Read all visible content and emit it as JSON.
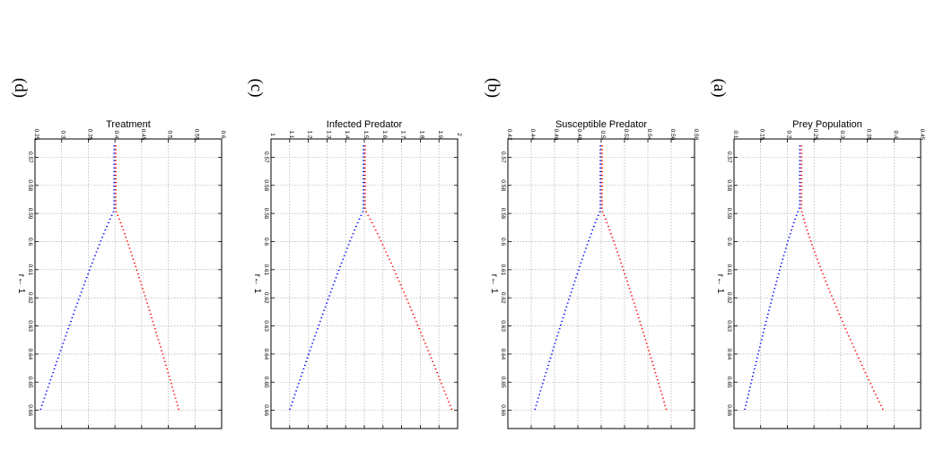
{
  "figure": {
    "colors": {
      "red": "#ff0000",
      "blue": "#0000ff",
      "grid": "#9a9a9a",
      "axis": "#000000"
    }
  },
  "chart_data": [
    {
      "type": "scatter",
      "panel_label": "(a)",
      "title": "Prey Population",
      "xlabel": "r↔1",
      "xlabel_text": "r← 1",
      "ylabel": "",
      "x_ticks": [
        "0.57",
        "0.58",
        "0.59",
        "0.6",
        "0.61",
        "0.62",
        "0.63",
        "0.64",
        "0.65",
        "0.66"
      ],
      "y_ticks": [
        "0.1",
        "0.15",
        "0.2",
        "0.25",
        "0.3",
        "0.35",
        "0.4",
        "0.45"
      ],
      "xlim": [
        0.5635,
        0.6665
      ],
      "ylim": [
        0.1,
        0.45
      ],
      "grid": true,
      "series": [
        {
          "name": "upper branch",
          "color": "red",
          "start_x": 0.566,
          "branch_x": 0.5872,
          "end_x": 0.66,
          "start_y": 0.225,
          "end_y": 0.38,
          "curve": 1.2
        },
        {
          "name": "lower branch",
          "color": "blue",
          "start_x": 0.566,
          "branch_x": 0.5872,
          "end_x": 0.66,
          "start_y": 0.225,
          "end_y": 0.12,
          "curve": 0.85
        }
      ]
    },
    {
      "type": "scatter",
      "panel_label": "(b)",
      "title": "Susceptible Predator",
      "xlabel": "r↔1",
      "xlabel_text": "r← 1",
      "ylabel": "",
      "x_ticks": [
        "0.57",
        "0.58",
        "0.59",
        "0.6",
        "0.61",
        "0.62",
        "0.63",
        "0.64",
        "0.65",
        "0.66"
      ],
      "y_ticks": [
        "0.42",
        "0.44",
        "0.46",
        "0.48",
        "0.5",
        "0.52",
        "0.54",
        "0.56",
        "0.58"
      ],
      "xlim": [
        0.5635,
        0.6665
      ],
      "ylim": [
        0.42,
        0.58
      ],
      "grid": true,
      "series": [
        {
          "name": "upper branch",
          "color": "red",
          "start_x": 0.566,
          "branch_x": 0.5885,
          "end_x": 0.66,
          "start_y": 0.5,
          "end_y": 0.556,
          "curve": 0.9
        },
        {
          "name": "lower branch",
          "color": "blue",
          "start_x": 0.566,
          "branch_x": 0.5885,
          "end_x": 0.66,
          "start_y": 0.5,
          "end_y": 0.443,
          "curve": 0.9
        }
      ]
    },
    {
      "type": "scatter",
      "panel_label": "(c)",
      "title": "Infected Predator",
      "xlabel": "r↔1",
      "xlabel_text": "r← 1",
      "ylabel": "",
      "x_ticks": [
        "0.57",
        "0.58",
        "0.59",
        "0.6",
        "0.61",
        "0.62",
        "0.63",
        "0.64",
        "0.65",
        "0.66"
      ],
      "y_ticks": [
        "1",
        "1.1",
        "1.2",
        "1.3",
        "1.4",
        "1.5",
        "1.6",
        "1.7",
        "1.8",
        "1.9",
        "2"
      ],
      "xlim": [
        0.5635,
        0.6665
      ],
      "ylim": [
        1.0,
        2.0
      ],
      "grid": true,
      "series": [
        {
          "name": "upper branch",
          "color": "red",
          "start_x": 0.566,
          "branch_x": 0.5885,
          "end_x": 0.66,
          "start_y": 1.5,
          "end_y": 1.97,
          "curve": 0.9
        },
        {
          "name": "lower branch",
          "color": "blue",
          "start_x": 0.566,
          "branch_x": 0.5885,
          "end_x": 0.66,
          "start_y": 1.5,
          "end_y": 1.1,
          "curve": 0.9
        }
      ]
    },
    {
      "type": "scatter",
      "panel_label": "(d)",
      "title": "Treatment",
      "xlabel": "r↔1",
      "xlabel_text": "r← 1",
      "ylabel": "",
      "x_ticks": [
        "0.57",
        "0.58",
        "0.59",
        "0.6",
        "0.61",
        "0.62",
        "0.63",
        "0.64",
        "0.65",
        "0.66"
      ],
      "y_ticks": [
        "0.25",
        "0.3",
        "0.35",
        "0.4",
        "0.45",
        "0.5",
        "0.55",
        "0.6"
      ],
      "xlim": [
        0.5635,
        0.6665
      ],
      "ylim": [
        0.25,
        0.6
      ],
      "grid": true,
      "series": [
        {
          "name": "upper branch",
          "color": "red",
          "start_x": 0.566,
          "branch_x": 0.5885,
          "end_x": 0.66,
          "start_y": 0.4,
          "end_y": 0.52,
          "curve": 0.9
        },
        {
          "name": "lower branch",
          "color": "blue",
          "start_x": 0.566,
          "branch_x": 0.5885,
          "end_x": 0.66,
          "start_y": 0.4,
          "end_y": 0.26,
          "curve": 0.9
        }
      ]
    }
  ]
}
